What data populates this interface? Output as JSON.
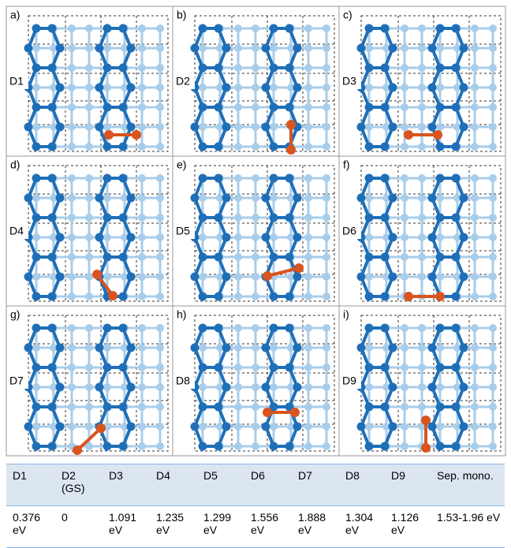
{
  "panels": [
    {
      "letter": "a)",
      "label": "D1"
    },
    {
      "letter": "b)",
      "label": "D2"
    },
    {
      "letter": "c)",
      "label": "D3"
    },
    {
      "letter": "d)",
      "label": "D4"
    },
    {
      "letter": "e)",
      "label": "D5"
    },
    {
      "letter": "f)",
      "label": "D6"
    },
    {
      "letter": "g)",
      "label": "D7"
    },
    {
      "letter": "h)",
      "label": "D8"
    },
    {
      "letter": "i)",
      "label": "D9"
    }
  ],
  "table": {
    "header": [
      "D1",
      "D2 (GS)",
      "D3",
      "D4",
      "D5",
      "D6",
      "D7",
      "D8",
      "D9",
      "Sep. mono."
    ],
    "row": [
      "0.376 eV",
      "0",
      "1.091 eV",
      "1.235 eV",
      "1.299 eV",
      "1.556 eV",
      "1.888 eV",
      "1.304 eV",
      "1.126 eV",
      "1.53-1.96 eV"
    ]
  }
}
